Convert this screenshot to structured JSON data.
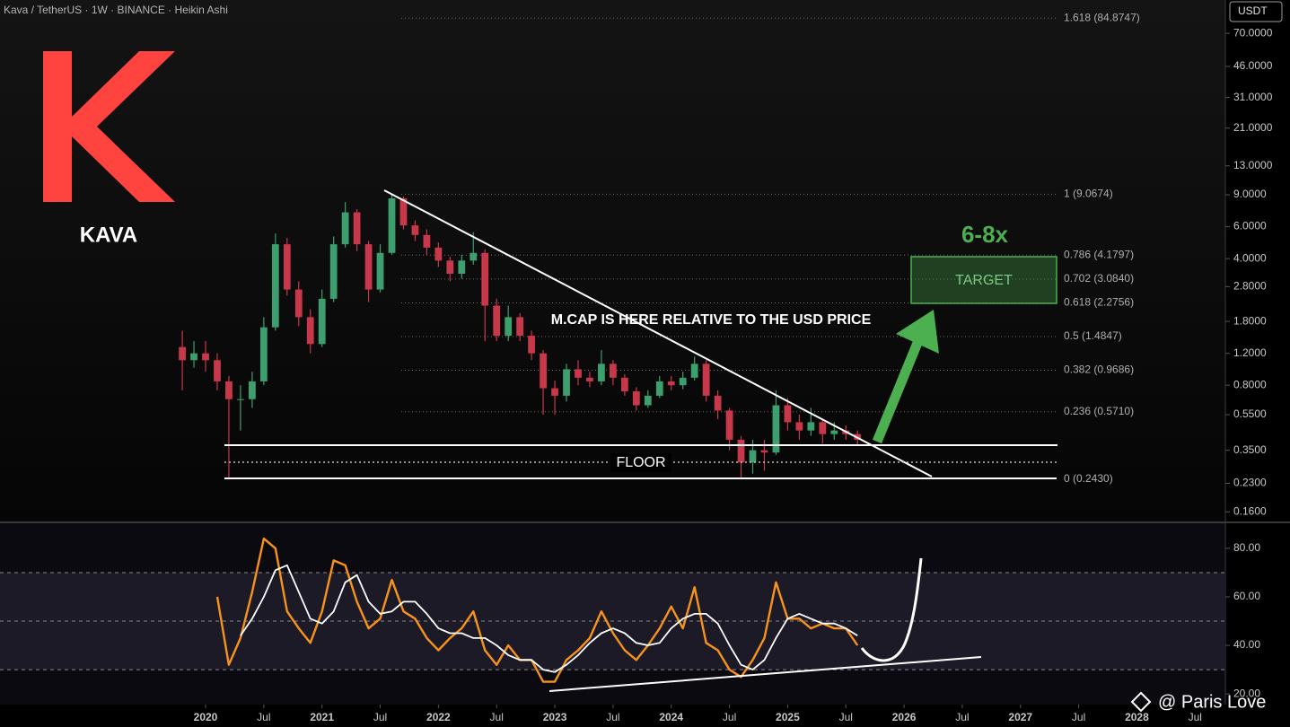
{
  "header": "Kava / TetherUS · 1W · BINANCE · Heikin Ashi",
  "currency": "USDT",
  "logo_text": "KAVA",
  "watermark": "@ Paris Love",
  "annotations": {
    "multiple": "6-8x",
    "target": "TARGET",
    "note": "M.CAP IS HERE RELATIVE TO THE USD PRICE",
    "floor": "FLOOR"
  },
  "chart_data": [
    {
      "type": "candlestick",
      "log_scale": true,
      "up_color": "#3d9f6e",
      "down_color": "#c8384b",
      "xlim": [
        2018.234,
        2028.76
      ],
      "ylim": [
        0.14,
        107
      ],
      "yticks": [
        {
          "value": 70,
          "label": "70.0000"
        },
        {
          "value": 46,
          "label": "46.0000"
        },
        {
          "value": 31,
          "label": "31.0000"
        },
        {
          "value": 21,
          "label": "21.0000"
        },
        {
          "value": 13,
          "label": "13.0000"
        },
        {
          "value": 9,
          "label": "9.0000"
        },
        {
          "value": 6,
          "label": "6.0000"
        },
        {
          "value": 4,
          "label": "4.0000"
        },
        {
          "value": 2.8,
          "label": "2.8000"
        },
        {
          "value": 1.8,
          "label": "1.8000"
        },
        {
          "value": 1.2,
          "label": "1.2000"
        },
        {
          "value": 0.8,
          "label": "0.8000"
        },
        {
          "value": 0.55,
          "label": "0.5500"
        },
        {
          "value": 0.35,
          "label": "0.3500"
        },
        {
          "value": 0.23,
          "label": "0.2300"
        },
        {
          "value": 0.16,
          "label": "0.1600"
        }
      ],
      "fib_levels": [
        {
          "value": 84.8747,
          "label": "1.618 (84.8747)"
        },
        {
          "value": 9.0674,
          "label": "1 (9.0674)"
        },
        {
          "value": 4.1797,
          "label": "0.786 (4.1797)"
        },
        {
          "value": 3.084,
          "label": "0.702 (3.0840)"
        },
        {
          "value": 2.2756,
          "label": "0.618 (2.2756)"
        },
        {
          "value": 1.4847,
          "label": "0.5 (1.4847)"
        },
        {
          "value": 0.9686,
          "label": "0.382 (0.9686)"
        },
        {
          "value": 0.571,
          "label": "0.236 (0.5710)"
        },
        {
          "value": 0.243,
          "label": "0 (0.2430)"
        }
      ],
      "x": [
        2019.8,
        2019.9,
        2020.0,
        2020.1,
        2020.2,
        2020.3,
        2020.4,
        2020.5,
        2020.6,
        2020.7,
        2020.8,
        2020.9,
        2021.0,
        2021.1,
        2021.2,
        2021.3,
        2021.4,
        2021.5,
        2021.6,
        2021.7,
        2021.8,
        2021.9,
        2022.0,
        2022.1,
        2022.2,
        2022.3,
        2022.4,
        2022.5,
        2022.6,
        2022.7,
        2022.8,
        2022.9,
        2023.0,
        2023.1,
        2023.2,
        2023.3,
        2023.4,
        2023.5,
        2023.6,
        2023.7,
        2023.8,
        2023.9,
        2024.0,
        2024.1,
        2024.2,
        2024.3,
        2024.4,
        2024.5,
        2024.6,
        2024.7,
        2024.8,
        2024.9,
        2025.0,
        2025.1,
        2025.2,
        2025.3,
        2025.4,
        2025.5,
        2025.6
      ],
      "open": [
        1.3,
        1.1,
        1.2,
        1.1,
        0.84,
        0.67,
        0.67,
        0.84,
        1.67,
        4.8,
        2.7,
        1.9,
        1.35,
        2.4,
        4.8,
        7.2,
        4.8,
        2.7,
        4.3,
        8.6,
        6.1,
        5.4,
        4.6,
        3.9,
        3.3,
        3.9,
        4.3,
        2.2,
        1.5,
        1.9,
        1.5,
        1.2,
        0.77,
        0.7,
        0.98,
        0.88,
        0.84,
        1.05,
        0.88,
        0.74,
        0.62,
        0.7,
        0.84,
        0.8,
        0.88,
        1.05,
        0.7,
        0.58,
        0.4,
        0.3,
        0.35,
        0.34,
        0.62,
        0.5,
        0.45,
        0.5,
        0.43,
        0.45,
        0.43
      ],
      "high": [
        1.6,
        1.4,
        1.4,
        1.2,
        0.9,
        0.8,
        0.95,
        1.9,
        5.5,
        5.2,
        3.0,
        2.1,
        2.7,
        5.3,
        8.2,
        7.5,
        5.0,
        4.8,
        9.07,
        8.8,
        6.5,
        5.8,
        4.9,
        4.1,
        4.2,
        5.6,
        4.5,
        2.4,
        2.2,
        2.0,
        1.6,
        1.25,
        0.85,
        1.05,
        1.1,
        0.95,
        1.25,
        1.1,
        0.92,
        0.78,
        0.75,
        0.9,
        0.9,
        0.95,
        1.15,
        1.1,
        0.75,
        0.6,
        0.42,
        0.4,
        0.4,
        0.75,
        0.68,
        0.55,
        0.6,
        0.52,
        0.5,
        0.48,
        0.45
      ],
      "low": [
        0.75,
        1.0,
        0.95,
        0.75,
        0.243,
        0.45,
        0.6,
        0.8,
        1.6,
        2.5,
        1.7,
        1.2,
        1.3,
        2.3,
        4.6,
        4.4,
        2.3,
        2.6,
        4.2,
        5.8,
        5.0,
        4.2,
        3.6,
        3.0,
        3.1,
        3.7,
        1.4,
        1.4,
        1.4,
        1.4,
        1.1,
        0.55,
        0.55,
        0.65,
        0.8,
        0.78,
        0.8,
        0.8,
        0.7,
        0.58,
        0.6,
        0.68,
        0.75,
        0.76,
        0.85,
        0.65,
        0.52,
        0.35,
        0.243,
        0.26,
        0.27,
        0.33,
        0.45,
        0.4,
        0.42,
        0.38,
        0.4,
        0.4,
        0.37
      ],
      "close": [
        1.1,
        1.2,
        1.1,
        0.84,
        0.67,
        0.67,
        0.84,
        1.67,
        4.8,
        2.7,
        1.9,
        1.35,
        2.4,
        4.8,
        7.2,
        4.8,
        2.7,
        4.3,
        8.6,
        6.1,
        5.4,
        4.6,
        3.9,
        3.3,
        3.9,
        4.3,
        2.2,
        1.5,
        1.9,
        1.5,
        1.2,
        0.77,
        0.7,
        0.98,
        0.88,
        0.84,
        1.05,
        0.88,
        0.74,
        0.62,
        0.7,
        0.84,
        0.8,
        0.88,
        1.05,
        0.7,
        0.58,
        0.4,
        0.3,
        0.35,
        0.34,
        0.62,
        0.5,
        0.45,
        0.5,
        0.43,
        0.45,
        0.43,
        0.4
      ]
    },
    {
      "type": "line",
      "xlim": [
        2018.234,
        2028.76
      ],
      "ylim": [
        15.6,
        90.7
      ],
      "yticks": [
        {
          "value": 80,
          "label": "80.00"
        },
        {
          "value": 60,
          "label": "60.00"
        },
        {
          "value": 40,
          "label": "40.00"
        },
        {
          "value": 20,
          "label": "20.00"
        }
      ],
      "levels": [
        70,
        50,
        30
      ],
      "xticks": [
        2020,
        {
          "value": 2020.5,
          "label": "Jul"
        },
        2021,
        {
          "value": 2021.5,
          "label": "Jul"
        },
        2022,
        {
          "value": 2022.5,
          "label": "Jul"
        },
        2023,
        {
          "value": 2023.5,
          "label": "Jul"
        },
        2024,
        {
          "value": 2024.5,
          "label": "Jul"
        },
        2025,
        {
          "value": 2025.5,
          "label": "Jul"
        },
        2026,
        {
          "value": 2026.5,
          "label": "Jul"
        },
        2027,
        {
          "value": 2027.5,
          "label": "Jul"
        },
        2028,
        {
          "value": 2028.5,
          "label": "Jul"
        }
      ],
      "x": [
        2020.1,
        2020.2,
        2020.3,
        2020.4,
        2020.5,
        2020.6,
        2020.7,
        2020.8,
        2020.9,
        2021.0,
        2021.1,
        2021.2,
        2021.3,
        2021.4,
        2021.5,
        2021.6,
        2021.7,
        2021.8,
        2021.9,
        2022.0,
        2022.1,
        2022.2,
        2022.3,
        2022.4,
        2022.5,
        2022.6,
        2022.7,
        2022.8,
        2022.9,
        2023.0,
        2023.1,
        2023.2,
        2023.3,
        2023.4,
        2023.5,
        2023.6,
        2023.7,
        2023.8,
        2023.9,
        2024.0,
        2024.1,
        2024.2,
        2024.3,
        2024.4,
        2024.5,
        2024.6,
        2024.7,
        2024.8,
        2024.9,
        2025.0,
        2025.1,
        2025.2,
        2025.3,
        2025.4,
        2025.5,
        2025.6
      ],
      "series": [
        {
          "color": "#f7931a",
          "values": [
            60,
            32,
            43,
            62,
            84,
            80,
            54,
            47,
            41,
            54,
            75,
            73,
            58,
            47,
            51,
            67,
            54,
            51,
            43,
            38,
            43,
            47,
            54,
            38,
            32,
            40,
            34,
            34,
            25,
            25,
            34,
            38,
            43,
            54,
            45,
            38,
            34,
            40,
            47,
            56,
            47,
            64,
            41,
            38,
            30,
            27,
            34,
            43,
            66,
            51,
            51,
            47,
            49,
            47,
            47,
            40
          ]
        },
        {
          "color": "#ffffff",
          "values": [
            null,
            null,
            44,
            51,
            60,
            71,
            73,
            62,
            51,
            49,
            54,
            66,
            69,
            58,
            53,
            54,
            58,
            58,
            53,
            47,
            45,
            45,
            43,
            43,
            40,
            36,
            34,
            34,
            30,
            29,
            32,
            36,
            41,
            45,
            47,
            45,
            41,
            40,
            41,
            47,
            51,
            53,
            53,
            49,
            40,
            32,
            30,
            34,
            43,
            51,
            53,
            51,
            49,
            49,
            47,
            44
          ]
        }
      ]
    }
  ]
}
